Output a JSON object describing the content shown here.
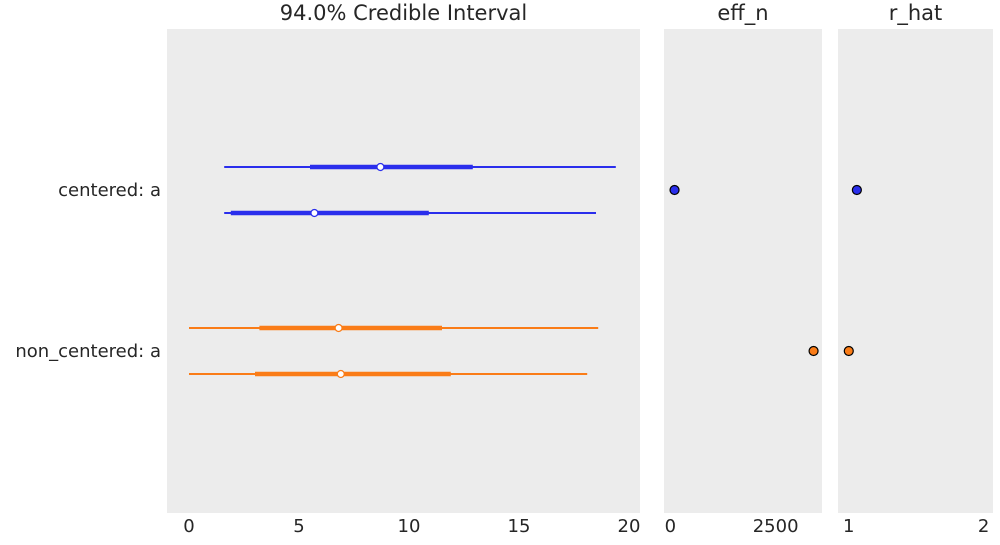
{
  "chart_data": [
    {
      "type": "forest",
      "title": "94.0% Credible Interval",
      "x_ticks": [
        0,
        5,
        10,
        15,
        20
      ],
      "xlim": [
        -1,
        20.5
      ],
      "grid": false,
      "legend": "none",
      "row_labels": [
        "centered: a",
        "non_centered: a"
      ],
      "series": [
        {
          "row": "centered: a",
          "color": "#2a2eec",
          "chains": [
            {
              "hdi_94": [
                1.6,
                19.4
              ],
              "iqr": [
                5.5,
                12.9
              ],
              "median": 8.7
            },
            {
              "hdi_94": [
                1.6,
                18.5
              ],
              "iqr": [
                1.9,
                10.9
              ],
              "median": 5.7
            }
          ]
        },
        {
          "row": "non_centered: a",
          "color": "#fa7c17",
          "chains": [
            {
              "hdi_94": [
                0.0,
                18.6
              ],
              "iqr": [
                3.2,
                11.5
              ],
              "median": 6.8
            },
            {
              "hdi_94": [
                0.0,
                18.1
              ],
              "iqr": [
                3.0,
                11.9
              ],
              "median": 6.9
            }
          ]
        }
      ]
    },
    {
      "type": "scatter",
      "title": "eff_n",
      "x_ticks": [
        0,
        2500
      ],
      "xlim": [
        -150,
        3600
      ],
      "points": [
        {
          "row": "centered: a",
          "value": 100,
          "color": "#2a2eec"
        },
        {
          "row": "non_centered: a",
          "value": 3400,
          "color": "#fa7c17"
        }
      ]
    },
    {
      "type": "scatter",
      "title": "r_hat",
      "x_ticks": [
        1,
        2
      ],
      "xlim": [
        0.92,
        2.07
      ],
      "points": [
        {
          "row": "centered: a",
          "value": 1.06,
          "color": "#2a2eec"
        },
        {
          "row": "non_centered: a",
          "value": 1.0,
          "color": "#fa7c17"
        }
      ]
    }
  ]
}
